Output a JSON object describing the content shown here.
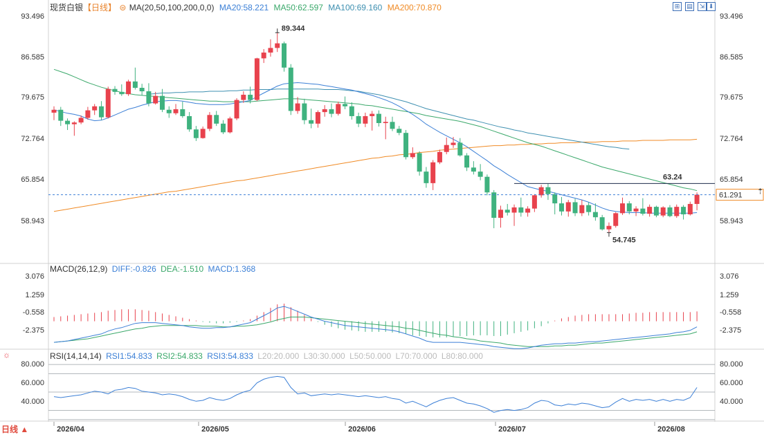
{
  "header": {
    "symbol": "现货白银",
    "period_tag": "【日线】",
    "ma_title": "MA(20,50,100,200,0,0)",
    "ma20": "MA20:58.221",
    "ma50": "MA50:62.597",
    "ma100": "MA100:69.160",
    "ma200": "MA200:70.870"
  },
  "macd_header": {
    "title": "MACD(26,12,9)",
    "diff": "DIFF:-0.826",
    "dea": "DEA:-1.510",
    "macd": "MACD:1.368"
  },
  "rsi_header": {
    "title": "RSI(14,14,14)",
    "rsi1": "RSI1:54.833",
    "rsi2": "RSI2:54.833",
    "rsi3": "RSI3:54.833",
    "l20": "L20:20.000",
    "l30": "L30:30.000",
    "l50": "L50:50.000",
    "l70": "L70:70.000",
    "l80": "L80:80.000"
  },
  "period_button": "日线 ▲",
  "colors": {
    "up": "#e8424d",
    "down": "#3fb27f",
    "ma20": "#3b7fd6",
    "ma50": "#3aa86a",
    "ma100": "#3d8fb0",
    "ma200": "#f08a24",
    "diff": "#3b7fd6",
    "dea": "#3aa86a",
    "rsi": "#3b7fd6"
  },
  "chart_data": {
    "type": "candlestick",
    "price_axis_labels": [
      "93.496",
      "86.585",
      "79.675",
      "72.764",
      "65.854",
      "58.943"
    ],
    "macd_axis_labels": [
      "3.076",
      "1.259",
      "-0.558",
      "-2.375"
    ],
    "rsi_axis_labels": [
      "80.000",
      "60.000",
      "40.000"
    ],
    "x_labels": [
      "2026/04",
      "2026/05",
      "2026/06",
      "2026/07",
      "2026/08"
    ],
    "current_price": "61.291",
    "annotations": {
      "high": "89.344",
      "low": "54.745",
      "level": "63.24"
    },
    "candles": [
      [
        75.5,
        76.6,
        74.2,
        76.0
      ],
      [
        76.0,
        76.5,
        73.2,
        74.1
      ],
      [
        74.1,
        74.5,
        72.5,
        73.5
      ],
      [
        73.5,
        74.0,
        71.5,
        73.8
      ],
      [
        73.8,
        75.0,
        73.5,
        74.6
      ],
      [
        74.6,
        76.5,
        74.3,
        75.9
      ],
      [
        75.9,
        77.0,
        75.1,
        76.6
      ],
      [
        76.6,
        77.5,
        74.2,
        74.7
      ],
      [
        74.7,
        80.0,
        74.5,
        79.6
      ],
      [
        79.6,
        80.1,
        78.6,
        79.1
      ],
      [
        79.1,
        80.4,
        78.4,
        78.7
      ],
      [
        78.7,
        81.2,
        78.4,
        80.9
      ],
      [
        80.9,
        83.3,
        79.5,
        79.8
      ],
      [
        79.8,
        80.5,
        78.5,
        79.2
      ],
      [
        79.2,
        80.6,
        76.6,
        77.1
      ],
      [
        77.1,
        79.1,
        76.9,
        78.4
      ],
      [
        78.4,
        79.6,
        75.6,
        76.0
      ],
      [
        76.0,
        76.6,
        74.6,
        75.4
      ],
      [
        75.4,
        77.0,
        75.1,
        76.1
      ],
      [
        76.1,
        77.4,
        74.6,
        74.9
      ],
      [
        74.9,
        75.6,
        72.2,
        72.6
      ],
      [
        72.6,
        73.2,
        70.6,
        71.1
      ],
      [
        71.1,
        73.1,
        71.0,
        72.7
      ],
      [
        72.7,
        75.6,
        72.3,
        75.1
      ],
      [
        75.1,
        75.8,
        73.2,
        73.6
      ],
      [
        73.6,
        74.2,
        71.8,
        72.1
      ],
      [
        72.1,
        74.8,
        71.9,
        74.5
      ],
      [
        74.5,
        78.0,
        74.2,
        77.7
      ],
      [
        77.7,
        79.2,
        77.2,
        78.6
      ],
      [
        78.6,
        80.0,
        77.1,
        77.7
      ],
      [
        77.7,
        85.0,
        77.5,
        84.9
      ],
      [
        84.9,
        86.5,
        84.1,
        85.9
      ],
      [
        85.9,
        88.2,
        85.2,
        86.7
      ],
      [
        86.7,
        89.3,
        86.0,
        87.5
      ],
      [
        87.5,
        87.8,
        82.6,
        83.3
      ],
      [
        83.3,
        83.9,
        75.1,
        75.8
      ],
      [
        75.8,
        78.2,
        75.3,
        77.1
      ],
      [
        77.1,
        77.9,
        73.5,
        74.2
      ],
      [
        74.2,
        76.2,
        72.8,
        73.6
      ],
      [
        73.6,
        75.9,
        72.9,
        75.6
      ],
      [
        75.6,
        76.8,
        74.8,
        76.1
      ],
      [
        76.1,
        77.1,
        74.7,
        75.3
      ],
      [
        75.3,
        77.4,
        75.0,
        77.0
      ],
      [
        77.0,
        78.3,
        76.1,
        76.6
      ],
      [
        76.6,
        77.3,
        74.3,
        74.9
      ],
      [
        74.9,
        75.5,
        73.0,
        73.6
      ],
      [
        73.6,
        75.5,
        73.0,
        74.9
      ],
      [
        74.9,
        75.8,
        72.4,
        75.3
      ],
      [
        75.3,
        75.9,
        73.1,
        73.7
      ],
      [
        73.7,
        74.8,
        70.9,
        73.9
      ],
      [
        73.9,
        74.8,
        72.3,
        72.7
      ],
      [
        72.7,
        73.2,
        71.6,
        72.0
      ],
      [
        72.0,
        72.5,
        67.4,
        67.8
      ],
      [
        67.8,
        69.5,
        67.5,
        68.5
      ],
      [
        68.5,
        68.8,
        64.6,
        65.3
      ],
      [
        65.3,
        66.1,
        62.5,
        63.3
      ],
      [
        63.3,
        67.3,
        62.1,
        66.9
      ],
      [
        66.9,
        69.1,
        66.6,
        68.7
      ],
      [
        68.7,
        71.2,
        68.3,
        69.9
      ],
      [
        69.9,
        71.3,
        69.4,
        70.3
      ],
      [
        70.3,
        71.1,
        67.9,
        68.1
      ],
      [
        68.1,
        68.5,
        65.4,
        66.0
      ],
      [
        66.0,
        67.1,
        64.8,
        65.3
      ],
      [
        65.3,
        66.6,
        63.8,
        64.4
      ],
      [
        64.4,
        64.8,
        61.2,
        61.7
      ],
      [
        61.7,
        62.1,
        55.5,
        57.3
      ],
      [
        57.3,
        59.4,
        55.6,
        58.7
      ],
      [
        58.7,
        59.7,
        57.7,
        58.2
      ],
      [
        58.2,
        59.6,
        55.9,
        59.1
      ],
      [
        59.1,
        60.8,
        57.5,
        58.2
      ],
      [
        58.2,
        59.3,
        57.5,
        58.9
      ],
      [
        58.9,
        61.4,
        58.3,
        61.2
      ],
      [
        61.2,
        63.0,
        60.8,
        62.6
      ],
      [
        62.6,
        63.2,
        60.4,
        61.4
      ],
      [
        61.4,
        61.7,
        57.9,
        59.8
      ],
      [
        59.8,
        60.9,
        57.7,
        58.4
      ],
      [
        58.4,
        60.4,
        57.5,
        60.0
      ],
      [
        60.0,
        60.6,
        57.6,
        58.1
      ],
      [
        58.1,
        60.4,
        57.6,
        59.5
      ],
      [
        59.5,
        60.0,
        57.7,
        58.3
      ],
      [
        58.3,
        59.8,
        56.8,
        57.4
      ],
      [
        57.4,
        57.8,
        55.1,
        55.3
      ],
      [
        55.3,
        56.5,
        54.7,
        55.9
      ],
      [
        55.9,
        58.3,
        55.6,
        58.1
      ],
      [
        58.1,
        60.8,
        57.8,
        59.8
      ],
      [
        59.8,
        60.2,
        57.9,
        58.4
      ],
      [
        58.4,
        59.3,
        57.6,
        58.9
      ],
      [
        58.9,
        60.7,
        57.7,
        58.0
      ],
      [
        58.0,
        59.6,
        57.5,
        59.2
      ],
      [
        59.2,
        59.4,
        57.4,
        57.7
      ],
      [
        57.7,
        59.3,
        57.4,
        59.1
      ],
      [
        59.1,
        59.5,
        57.4,
        57.6
      ],
      [
        57.6,
        59.6,
        57.3,
        59.2
      ],
      [
        59.2,
        59.5,
        57.0,
        57.9
      ],
      [
        57.9,
        60.1,
        57.7,
        59.7
      ],
      [
        59.7,
        61.7,
        58.6,
        61.3
      ]
    ],
    "ma20": [
      76.0,
      75.7,
      75.4,
      75.2,
      74.9,
      74.4,
      74.1,
      74.2,
      74.6,
      75.1,
      75.6,
      76.1,
      76.4,
      76.8,
      77.1,
      77.4,
      77.5,
      77.6,
      77.6,
      77.5,
      77.3,
      77.1,
      77.0,
      76.9,
      76.9,
      76.9,
      77.0,
      77.2,
      77.4,
      77.6,
      78.3,
      78.9,
      79.5,
      80.1,
      80.5,
      80.6,
      80.7,
      80.6,
      80.5,
      80.4,
      80.2,
      80.0,
      79.8,
      79.6,
      79.4,
      79.1,
      78.8,
      78.5,
      78.1,
      77.7,
      77.2,
      76.6,
      75.9,
      75.2,
      74.4,
      73.5,
      72.8,
      72.1,
      71.5,
      70.9,
      70.3,
      69.6,
      68.8,
      68.0,
      67.2,
      66.3,
      65.6,
      64.8,
      64.1,
      63.4,
      62.7,
      62.4,
      62.1,
      61.9,
      61.6,
      61.3,
      61.0,
      60.7,
      60.4,
      60.0,
      59.5,
      59.0,
      58.6,
      58.4,
      58.3,
      58.2,
      58.2,
      58.2,
      58.1,
      58.1,
      58.1,
      58.1,
      58.1,
      58.1,
      58.1,
      58.2
    ],
    "ma50": [
      83.0,
      82.6,
      82.2,
      81.7,
      81.2,
      80.7,
      80.3,
      79.9,
      79.6,
      79.3,
      79.0,
      78.8,
      78.6,
      78.5,
      78.4,
      78.3,
      78.2,
      78.1,
      78.0,
      77.9,
      77.8,
      77.7,
      77.6,
      77.5,
      77.5,
      77.4,
      77.4,
      77.4,
      77.4,
      77.4,
      77.5,
      77.6,
      77.7,
      77.8,
      77.9,
      77.9,
      77.9,
      77.8,
      77.7,
      77.6,
      77.5,
      77.4,
      77.3,
      77.2,
      77.1,
      77.0,
      76.8,
      76.7,
      76.5,
      76.3,
      76.1,
      75.9,
      75.7,
      75.5,
      75.3,
      75.0,
      74.8,
      74.6,
      74.4,
      74.2,
      74.0,
      73.7,
      73.4,
      73.1,
      72.7,
      72.3,
      71.9,
      71.5,
      71.1,
      70.7,
      70.3,
      70.0,
      69.7,
      69.3,
      68.9,
      68.5,
      68.1,
      67.7,
      67.3,
      66.9,
      66.5,
      66.1,
      65.8,
      65.5,
      65.2,
      64.9,
      64.6,
      64.3,
      64.0,
      63.7,
      63.4,
      63.1,
      62.8,
      62.5,
      62.3,
      62.0
    ],
    "ma100": [
      null,
      null,
      null,
      null,
      null,
      null,
      null,
      null,
      null,
      null,
      null,
      null,
      null,
      null,
      78.7,
      78.8,
      78.9,
      78.9,
      79.0,
      79.0,
      79.1,
      79.1,
      79.1,
      79.2,
      79.2,
      79.2,
      79.3,
      79.3,
      79.4,
      79.4,
      79.5,
      79.5,
      79.5,
      79.6,
      79.6,
      79.6,
      79.6,
      79.6,
      79.6,
      79.6,
      79.5,
      79.5,
      79.5,
      79.4,
      79.3,
      79.2,
      79.0,
      78.8,
      78.6,
      78.3,
      78.0,
      77.7,
      77.4,
      77.0,
      76.6,
      76.2,
      75.9,
      75.6,
      75.3,
      75.0,
      74.7,
      74.4,
      74.2,
      73.9,
      73.6,
      73.3,
      73.0,
      72.8,
      72.5,
      72.3,
      72.0,
      71.8,
      71.6,
      71.4,
      71.2,
      71.0,
      70.8,
      70.6,
      70.4,
      70.2,
      70.0,
      69.8,
      69.6,
      69.5,
      69.3,
      69.2
    ],
    "ma200": [
      58.4,
      58.6,
      58.8,
      59.0,
      59.2,
      59.4,
      59.6,
      59.8,
      60.0,
      60.2,
      60.4,
      60.6,
      60.8,
      61.0,
      61.2,
      61.4,
      61.6,
      61.8,
      61.9,
      62.1,
      62.3,
      62.5,
      62.7,
      62.9,
      63.1,
      63.3,
      63.5,
      63.7,
      63.8,
      64.0,
      64.2,
      64.4,
      64.6,
      64.8,
      65.0,
      65.2,
      65.4,
      65.6,
      65.8,
      66.0,
      66.2,
      66.4,
      66.6,
      66.8,
      67.0,
      67.2,
      67.4,
      67.6,
      67.7,
      67.9,
      68.0,
      68.2,
      68.3,
      68.4,
      68.6,
      68.7,
      68.8,
      69.0,
      69.1,
      69.2,
      69.3,
      69.4,
      69.5,
      69.6,
      69.7,
      69.8,
      69.8,
      69.9,
      69.9,
      70.0,
      70.0,
      70.1,
      70.1,
      70.2,
      70.2,
      70.3,
      70.3,
      70.3,
      70.4,
      70.4,
      70.4,
      70.5,
      70.5,
      70.5,
      70.6,
      70.6,
      70.6,
      70.7,
      70.7,
      70.7,
      70.7,
      70.8,
      70.8,
      70.8,
      70.8,
      70.9
    ],
    "macd_hist": [
      0.6,
      0.7,
      0.8,
      0.9,
      1.0,
      1.1,
      1.2,
      1.3,
      1.5,
      1.6,
      1.7,
      1.7,
      1.7,
      1.6,
      1.5,
      1.3,
      1.1,
      0.9,
      0.7,
      0.5,
      0.3,
      0.1,
      -0.1,
      -0.2,
      -0.3,
      -0.3,
      -0.2,
      -0.1,
      0.1,
      0.3,
      0.8,
      1.3,
      1.9,
      2.4,
      2.5,
      2.0,
      1.5,
      0.9,
      0.4,
      -0.1,
      -0.5,
      -0.8,
      -1.0,
      -1.2,
      -1.3,
      -1.4,
      -1.5,
      -1.5,
      -1.5,
      -1.5,
      -1.6,
      -1.7,
      -1.8,
      -2.0,
      -2.1,
      -2.2,
      -2.3,
      -2.3,
      -2.3,
      -2.2,
      -2.1,
      -2.1,
      -2.0,
      -2.0,
      -2.0,
      -2.1,
      -2.1,
      -1.9,
      -1.7,
      -1.5,
      -1.3,
      -1.0,
      -0.7,
      -0.3,
      0.1,
      0.4,
      0.6,
      0.8,
      0.9,
      1.0,
      1.0,
      1.0,
      1.0,
      1.0,
      1.0,
      1.1,
      1.2,
      1.2,
      1.3,
      1.3,
      1.3,
      1.3,
      1.3,
      1.3,
      1.3,
      1.4
    ],
    "diff": [
      -3.0,
      -2.9,
      -2.8,
      -2.6,
      -2.4,
      -2.2,
      -2.0,
      -1.8,
      -1.4,
      -1.1,
      -0.9,
      -0.6,
      -0.3,
      -0.2,
      -0.2,
      -0.2,
      -0.3,
      -0.4,
      -0.5,
      -0.6,
      -0.8,
      -0.9,
      -1.0,
      -1.0,
      -0.9,
      -0.9,
      -0.8,
      -0.6,
      -0.4,
      -0.2,
      0.3,
      0.8,
      1.3,
      1.9,
      2.1,
      1.8,
      1.4,
      1.0,
      0.6,
      0.3,
      0.0,
      -0.2,
      -0.4,
      -0.6,
      -0.7,
      -0.8,
      -0.9,
      -1.0,
      -1.1,
      -1.2,
      -1.3,
      -1.5,
      -1.8,
      -2.1,
      -2.4,
      -2.8,
      -3.0,
      -3.0,
      -3.0,
      -3.0,
      -3.0,
      -3.1,
      -3.2,
      -3.3,
      -3.4,
      -3.6,
      -3.7,
      -3.8,
      -3.9,
      -3.9,
      -3.8,
      -3.6,
      -3.4,
      -3.3,
      -3.2,
      -3.2,
      -3.1,
      -3.1,
      -3.0,
      -2.9,
      -2.9,
      -2.8,
      -2.7,
      -2.6,
      -2.5,
      -2.4,
      -2.3,
      -2.2,
      -2.1,
      -2.0,
      -1.9,
      -1.8,
      -1.6,
      -1.5,
      -1.3,
      -0.8
    ],
    "dea": [
      -3.0,
      -2.9,
      -2.8,
      -2.7,
      -2.6,
      -2.5,
      -2.3,
      -2.1,
      -1.9,
      -1.7,
      -1.5,
      -1.3,
      -1.1,
      -1.0,
      -0.8,
      -0.7,
      -0.6,
      -0.6,
      -0.6,
      -0.6,
      -0.6,
      -0.6,
      -0.7,
      -0.7,
      -0.7,
      -0.8,
      -0.8,
      -0.7,
      -0.7,
      -0.6,
      -0.5,
      -0.3,
      -0.1,
      0.2,
      0.4,
      0.6,
      0.6,
      0.6,
      0.5,
      0.4,
      0.3,
      0.2,
      0.1,
      0.0,
      -0.1,
      -0.2,
      -0.3,
      -0.4,
      -0.5,
      -0.6,
      -0.7,
      -0.8,
      -1.0,
      -1.1,
      -1.3,
      -1.5,
      -1.7,
      -1.9,
      -2.0,
      -2.2,
      -2.3,
      -2.5,
      -2.6,
      -2.8,
      -2.9,
      -3.0,
      -3.1,
      -3.3,
      -3.4,
      -3.5,
      -3.6,
      -3.6,
      -3.6,
      -3.6,
      -3.5,
      -3.5,
      -3.4,
      -3.4,
      -3.3,
      -3.2,
      -3.1,
      -3.1,
      -3.0,
      -2.9,
      -2.8,
      -2.7,
      -2.6,
      -2.5,
      -2.4,
      -2.3,
      -2.2,
      -2.1,
      -2.0,
      -1.9,
      -1.8,
      -1.5
    ],
    "rsi": [
      45,
      44,
      45,
      46,
      47,
      49,
      51,
      50,
      48,
      52,
      53,
      55,
      54,
      51,
      50,
      49,
      47,
      48,
      47,
      45,
      42,
      40,
      41,
      44,
      42,
      41,
      43,
      47,
      50,
      52,
      60,
      64,
      66,
      67,
      66,
      55,
      48,
      49,
      46,
      47,
      48,
      47,
      48,
      47,
      46,
      45,
      46,
      45,
      44,
      45,
      43,
      42,
      38,
      40,
      37,
      34,
      38,
      41,
      43,
      44,
      41,
      38,
      37,
      35,
      32,
      28,
      30,
      31,
      30,
      31,
      33,
      38,
      41,
      40,
      36,
      35,
      37,
      36,
      38,
      37,
      35,
      33,
      34,
      39,
      43,
      40,
      42,
      41,
      42,
      40,
      42,
      40,
      42,
      41,
      44,
      55
    ]
  }
}
